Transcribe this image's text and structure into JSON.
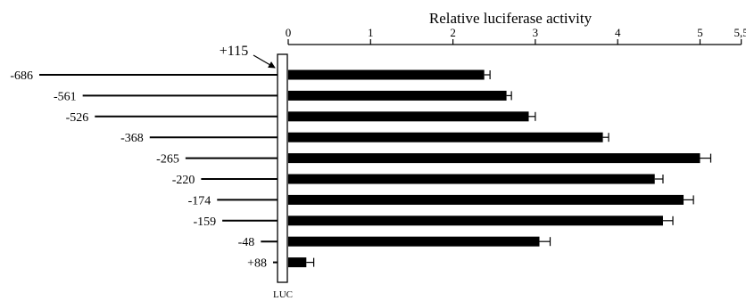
{
  "chart_data": {
    "type": "bar",
    "title": "Relative luciferase activity",
    "xlabel": "",
    "ylabel": "",
    "x_axis_position": "top",
    "xlim": [
      0,
      5.5
    ],
    "ticks": [
      {
        "value": 0,
        "label": "0"
      },
      {
        "value": 1,
        "label": "1"
      },
      {
        "value": 2,
        "label": "2"
      },
      {
        "value": 3,
        "label": "3"
      },
      {
        "value": 4,
        "label": "4"
      },
      {
        "value": 5,
        "label": "5"
      },
      {
        "value": 5.5,
        "label": "5,5"
      }
    ],
    "categories": [
      "-686",
      "-561",
      "-526",
      "-368",
      "-265",
      "-220",
      "-174",
      "-159",
      "-48",
      "+88"
    ],
    "construct_start": [
      -686,
      -561,
      -526,
      -368,
      -265,
      -220,
      -174,
      -159,
      -48,
      88
    ],
    "values": [
      2.38,
      2.65,
      2.92,
      3.82,
      5.0,
      4.45,
      4.8,
      4.55,
      3.05,
      0.22
    ],
    "errors": [
      0.07,
      0.06,
      0.08,
      0.07,
      0.13,
      0.1,
      0.12,
      0.12,
      0.13,
      0.09
    ],
    "grid": false,
    "legend": "none",
    "annotations": {
      "end_label": "+115",
      "reporter_label": "LUC"
    },
    "colors": {
      "bars": "#000000",
      "lines": "#000000",
      "background": "#ffffff"
    }
  }
}
